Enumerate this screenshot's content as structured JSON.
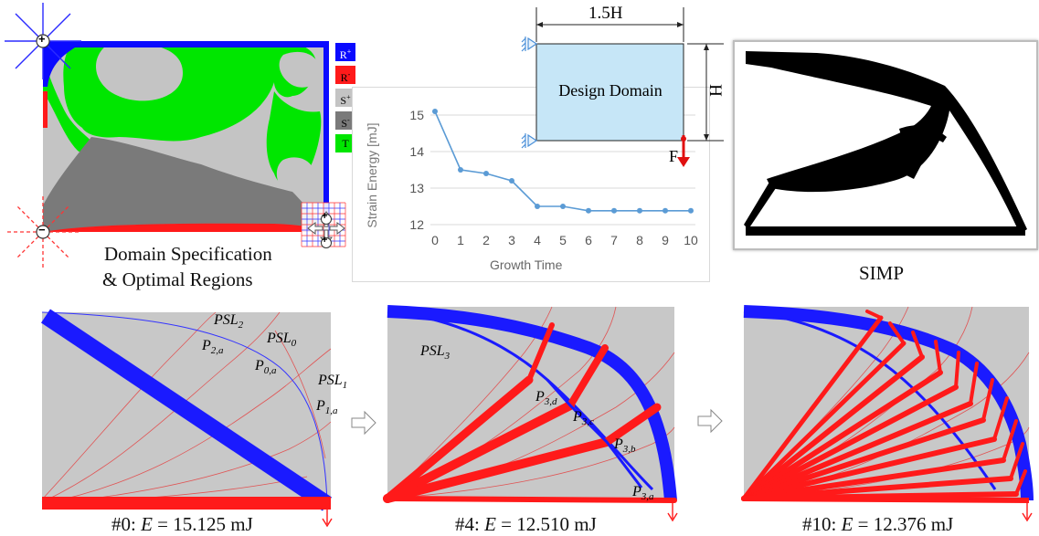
{
  "colors": {
    "tension": "#ff1a1a",
    "compression": "#1a1aff",
    "gray_region": "#c8c8c8",
    "dark_gray_region": "#7a7a7a",
    "green_region": "#00e600",
    "domain_fill": "#c6e6f7",
    "chart_line": "#5b9bd5"
  },
  "domain_panel": {
    "caption_line1": "Domain Specification",
    "caption_line2": "& Optimal Regions",
    "plus_symbol": "+",
    "minus_symbol": "−",
    "legend": [
      {
        "label": "R+",
        "base": "R",
        "sup": "+",
        "color": "#0a0aff",
        "text_color": "#ffffff"
      },
      {
        "label": "R-",
        "base": "R",
        "sup": "-",
        "color": "#ff1a1a",
        "text_color": "#000000"
      },
      {
        "label": "S+",
        "base": "S",
        "sup": "+",
        "color": "#c4c4c4",
        "text_color": "#000000"
      },
      {
        "label": "S-",
        "base": "S",
        "sup": "-",
        "color": "#7a7a7a",
        "text_color": "#000000"
      },
      {
        "label": "T",
        "base": "T",
        "sup": "",
        "color": "#00e600",
        "text_color": "#000000"
      }
    ]
  },
  "design_domain": {
    "label": "Design Domain",
    "width_label": "1.5H",
    "height_label": "H",
    "force_label": "F"
  },
  "simp_panel": {
    "caption": "SIMP"
  },
  "chart_data": {
    "type": "line",
    "x": [
      0,
      1,
      2,
      3,
      4,
      5,
      6,
      7,
      8,
      9,
      10
    ],
    "values": [
      15.1,
      13.5,
      13.4,
      13.2,
      12.5,
      12.5,
      12.38,
      12.38,
      12.38,
      12.38,
      12.38
    ],
    "xlabel": "Growth Time",
    "ylabel": "Strain Energy [mJ]",
    "ylim": [
      12,
      15.5
    ],
    "yticks": [
      12,
      13,
      14,
      15
    ],
    "xticks": [
      0,
      1,
      2,
      3,
      4,
      5,
      6,
      7,
      8,
      9,
      10
    ],
    "grid": true
  },
  "bottom_panels": [
    {
      "caption_prefix": "#0: ",
      "caption_var": "E",
      "caption_value": " = 15.125 mJ",
      "labels": [
        {
          "base": "PSL",
          "sub": "2"
        },
        {
          "base": "PSL",
          "sub": "0"
        },
        {
          "base": "PSL",
          "sub": "1"
        },
        {
          "base": "P",
          "sub": "2,a"
        },
        {
          "base": "P",
          "sub": "0,a"
        },
        {
          "base": "P",
          "sub": "1,a"
        }
      ]
    },
    {
      "caption_prefix": "#4: ",
      "caption_var": "E",
      "caption_value": " = 12.510 mJ",
      "labels": [
        {
          "base": "PSL",
          "sub": "3"
        },
        {
          "base": "P",
          "sub": "3,d"
        },
        {
          "base": "P",
          "sub": "3,c"
        },
        {
          "base": "P",
          "sub": "3,b"
        },
        {
          "base": "P",
          "sub": "3,a"
        }
      ]
    },
    {
      "caption_prefix": "#10: ",
      "caption_var": "E",
      "caption_value": " = 12.376 mJ",
      "labels": []
    }
  ]
}
